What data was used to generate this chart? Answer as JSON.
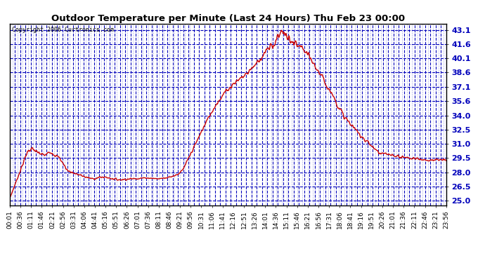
{
  "title": "Outdoor Temperature per Minute (Last 24 Hours) Thu Feb 23 00:00",
  "copyright": "Copyright 2006 Curtronics.com",
  "yticks": [
    25.0,
    26.5,
    28.0,
    29.5,
    31.0,
    32.5,
    34.0,
    35.6,
    37.1,
    38.6,
    40.1,
    41.6,
    43.1
  ],
  "ylim": [
    24.5,
    43.8
  ],
  "background_color": "#ffffff",
  "plot_bg_color": "#ffffff",
  "grid_color": "#0000bb",
  "line_color": "#cc0000",
  "line_width": 1.0,
  "xtick_labels": [
    "00:01",
    "00:36",
    "01:11",
    "01:46",
    "02:21",
    "02:56",
    "03:31",
    "04:06",
    "04:41",
    "05:16",
    "05:51",
    "06:26",
    "07:01",
    "07:36",
    "08:11",
    "08:46",
    "09:21",
    "09:56",
    "10:31",
    "11:06",
    "11:41",
    "12:16",
    "12:51",
    "13:26",
    "14:01",
    "14:36",
    "15:11",
    "15:46",
    "16:21",
    "16:56",
    "17:31",
    "18:06",
    "18:41",
    "19:16",
    "19:51",
    "20:26",
    "21:01",
    "21:36",
    "22:11",
    "22:46",
    "23:21",
    "23:56"
  ],
  "key_times": [
    0,
    60,
    75,
    90,
    115,
    135,
    150,
    165,
    190,
    220,
    270,
    310,
    360,
    400,
    450,
    490,
    510,
    530,
    555,
    570,
    590,
    620,
    650,
    680,
    710,
    740,
    770,
    790,
    810,
    830,
    850,
    865,
    875,
    885,
    895,
    910,
    930,
    950,
    970,
    990,
    1020,
    1060,
    1100,
    1140,
    1180,
    1220,
    1260,
    1320,
    1380,
    1439
  ],
  "key_temps": [
    25.2,
    30.3,
    30.5,
    30.1,
    29.8,
    30.2,
    29.8,
    29.5,
    28.2,
    27.8,
    27.3,
    27.5,
    27.2,
    27.3,
    27.4,
    27.3,
    27.4,
    27.5,
    27.8,
    28.2,
    29.5,
    31.5,
    33.5,
    35.2,
    36.5,
    37.5,
    38.2,
    38.8,
    39.5,
    40.2,
    41.0,
    41.5,
    41.8,
    42.5,
    43.1,
    42.5,
    41.8,
    41.4,
    41.0,
    40.1,
    38.6,
    36.5,
    34.0,
    32.5,
    31.2,
    30.0,
    29.8,
    29.5,
    29.3,
    29.3
  ]
}
